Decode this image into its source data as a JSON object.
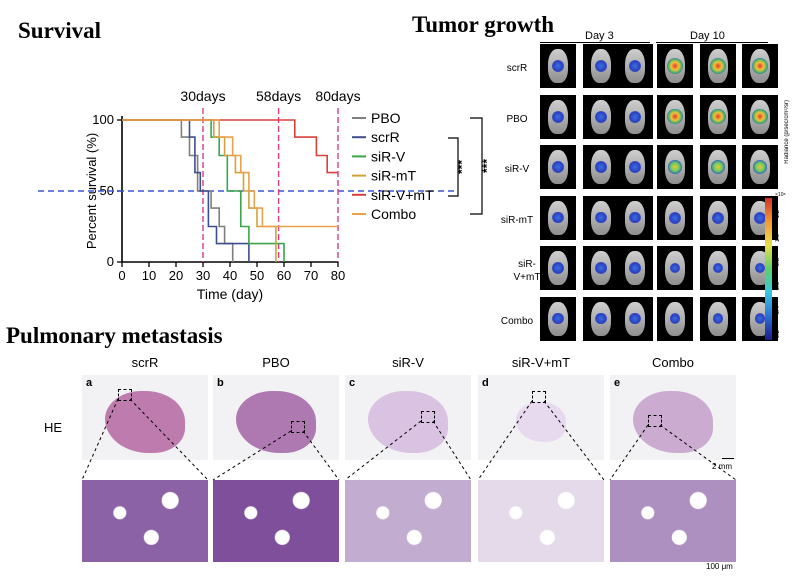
{
  "titles": {
    "survival": "Survival",
    "tumor": "Tumor growth",
    "pulmonary": "Pulmonary metastasis"
  },
  "chart_data": {
    "type": "line",
    "subtype": "kaplan-meier step",
    "title": "Survival",
    "xlabel": "Time (day)",
    "ylabel": "Percent survival (%)",
    "xlim": [
      0,
      80
    ],
    "ylim": [
      0,
      100
    ],
    "xticks": [
      0,
      10,
      20,
      30,
      40,
      50,
      60,
      70,
      80
    ],
    "yticks": [
      0,
      50,
      100
    ],
    "reference_line": {
      "y": 50,
      "color": "#3a55d8",
      "style": "dashed"
    },
    "vlines": [
      {
        "x": 30,
        "label": "30days",
        "color": "#d63c8c"
      },
      {
        "x": 58,
        "label": "58days",
        "color": "#d63c8c"
      },
      {
        "x": 80,
        "label": "80days",
        "color": "#d63c8c"
      }
    ],
    "series": [
      {
        "name": "PBO",
        "color": "#7f7f7f",
        "x": [
          0,
          22,
          25,
          28,
          33,
          36,
          38,
          41
        ],
        "y": [
          100,
          88,
          75,
          50,
          38,
          25,
          13,
          0
        ]
      },
      {
        "name": "scrR",
        "color": "#3d4f8c",
        "x": [
          0,
          25,
          27,
          29,
          32,
          35,
          40,
          47
        ],
        "y": [
          100,
          88,
          63,
          50,
          25,
          13,
          13,
          0
        ]
      },
      {
        "name": "siR-V",
        "color": "#3aa54a",
        "x": [
          0,
          33,
          36,
          39,
          44,
          47,
          60
        ],
        "y": [
          100,
          88,
          75,
          50,
          25,
          13,
          0
        ]
      },
      {
        "name": "siR-mT",
        "color": "#d4a13c",
        "x": [
          0,
          34,
          38,
          42,
          45,
          47,
          50,
          57
        ],
        "y": [
          100,
          88,
          75,
          63,
          50,
          38,
          25,
          0
        ]
      },
      {
        "name": "siR-V+mT",
        "color": "#d8403a",
        "x": [
          0,
          64,
          72,
          76,
          80
        ],
        "y": [
          100,
          88,
          75,
          63,
          63
        ]
      },
      {
        "name": "Combo",
        "color": "#eaa24a",
        "x": [
          0,
          36,
          41,
          44,
          47,
          49,
          52,
          80
        ],
        "y": [
          100,
          88,
          75,
          63,
          50,
          38,
          25,
          25
        ]
      }
    ],
    "significance": [
      "***",
      "***"
    ]
  },
  "tumor": {
    "day_labels": [
      "Day 3",
      "Day 10"
    ],
    "row_labels": [
      "scrR",
      "PBO",
      "siR-V",
      "siR-mT",
      "siR-\nV+mT",
      "Combo"
    ],
    "colorbar_label": "Radiance (p/sec/cm²/sr)",
    "colorbar_exp": "×10⁸",
    "colorbar_ticks": [
      "0.2",
      "0.4",
      "0.6",
      "0.8",
      "1.0",
      "1.2"
    ],
    "signal_day3": [
      0.5,
      0.5,
      0.45,
      0.45,
      0.45,
      0.45
    ],
    "signal_day10": [
      1.0,
      0.95,
      0.7,
      0.5,
      0.3,
      0.35
    ]
  },
  "metastasis": {
    "stain": "HE",
    "panels": [
      {
        "letter": "a",
        "name": "scrR"
      },
      {
        "letter": "b",
        "name": "PBO"
      },
      {
        "letter": "c",
        "name": "siR-V"
      },
      {
        "letter": "d",
        "name": "siR-V+mT"
      },
      {
        "letter": "e",
        "name": "Combo"
      }
    ],
    "scale_top": "2 mm",
    "scale_bottom": "100 μm"
  }
}
